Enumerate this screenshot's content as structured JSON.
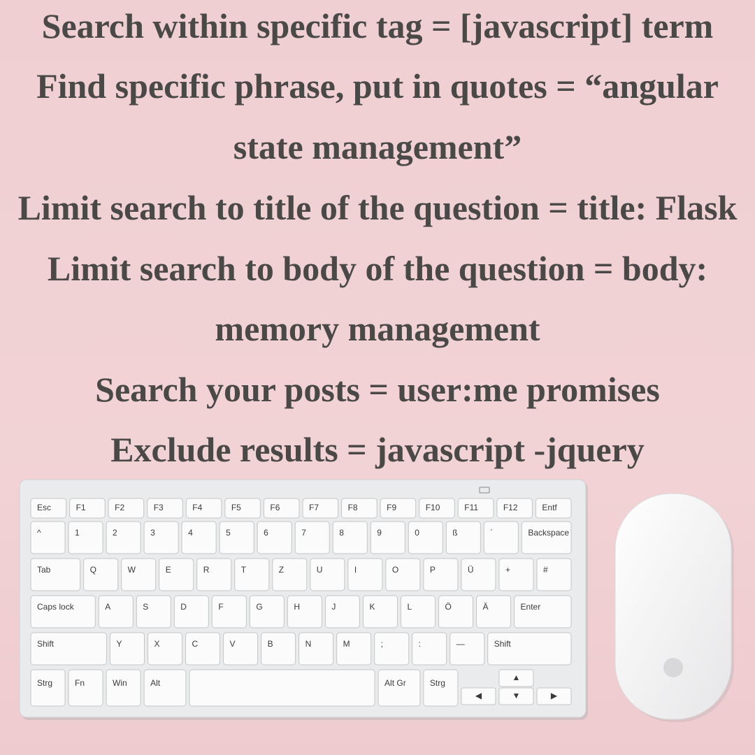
{
  "tips": {
    "lines": [
      "Search within specific tag = [javascript] term",
      "Find specific phrase, put in quotes = “angular",
      "state management”",
      "Limit search to title of the question = title: Flask",
      "Limit search to body of the question = body:",
      "memory management",
      "Search your posts = user:me promises",
      "Exclude results = javascript -jquery"
    ]
  },
  "keyboard": {
    "rows": [
      [
        "Esc",
        "F1",
        "F2",
        "F3",
        "F4",
        "F5",
        "F6",
        "F7",
        "F8",
        "F9",
        "F10",
        "F11",
        "F12",
        "Entf"
      ],
      [
        "^",
        "1",
        "2",
        "3",
        "4",
        "5",
        "6",
        "7",
        "8",
        "9",
        "0",
        "ß",
        "´",
        "Backspace"
      ],
      [
        "Tab",
        "Q",
        "W",
        "E",
        "R",
        "T",
        "Z",
        "U",
        "I",
        "O",
        "P",
        "Ü",
        "+",
        "#"
      ],
      [
        "Caps lock",
        "A",
        "S",
        "D",
        "F",
        "G",
        "H",
        "J",
        "K",
        "L",
        "Ö",
        "Ä",
        "Enter"
      ],
      [
        "Shift",
        "Y",
        "X",
        "C",
        "V",
        "B",
        "N",
        "M",
        ";",
        ":",
        "—",
        "Shift"
      ],
      [
        "Strg",
        "Fn",
        "Win",
        "Alt",
        "Alt Gr",
        "Strg",
        "◀",
        "▲",
        "▼",
        "▶"
      ]
    ]
  }
}
